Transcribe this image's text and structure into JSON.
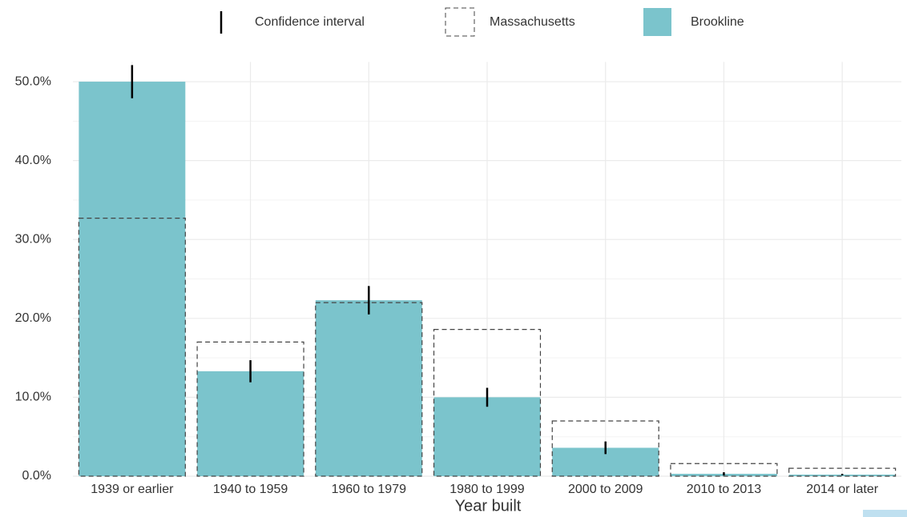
{
  "chart_data": {
    "type": "bar",
    "x_label": "Year built",
    "categories": [
      "1939 or earlier",
      "1940 to 1959",
      "1960 to 1979",
      "1980 to 1999",
      "2000 to 2009",
      "2010 to 2013",
      "2014 or later"
    ],
    "series": [
      {
        "name": "Brookline",
        "color": "#7bc4cc",
        "values": [
          50.0,
          13.3,
          22.3,
          10.0,
          3.6,
          0.3,
          0.2
        ]
      },
      {
        "name": "Massachusetts",
        "color": "#444444",
        "values": [
          32.7,
          17.0,
          22.0,
          18.6,
          7.0,
          1.6,
          1.0
        ]
      }
    ],
    "error_bars": {
      "name": "Confidence interval",
      "color": "#000000",
      "values": [
        2.1,
        1.4,
        1.8,
        1.2,
        0.8,
        0.2,
        0.1
      ]
    },
    "ylim": [
      0,
      52.5
    ],
    "yticks": [
      {
        "value": 0,
        "label": "0.0%"
      },
      {
        "value": 10,
        "label": "10.0%"
      },
      {
        "value": 20,
        "label": "20.0%"
      },
      {
        "value": 30,
        "label": "30.0%"
      },
      {
        "value": 40,
        "label": "40.0%"
      },
      {
        "value": 50,
        "label": "50.0%"
      }
    ],
    "yminor_ticks": [
      5,
      15,
      25,
      35,
      45
    ],
    "grid": true
  }
}
